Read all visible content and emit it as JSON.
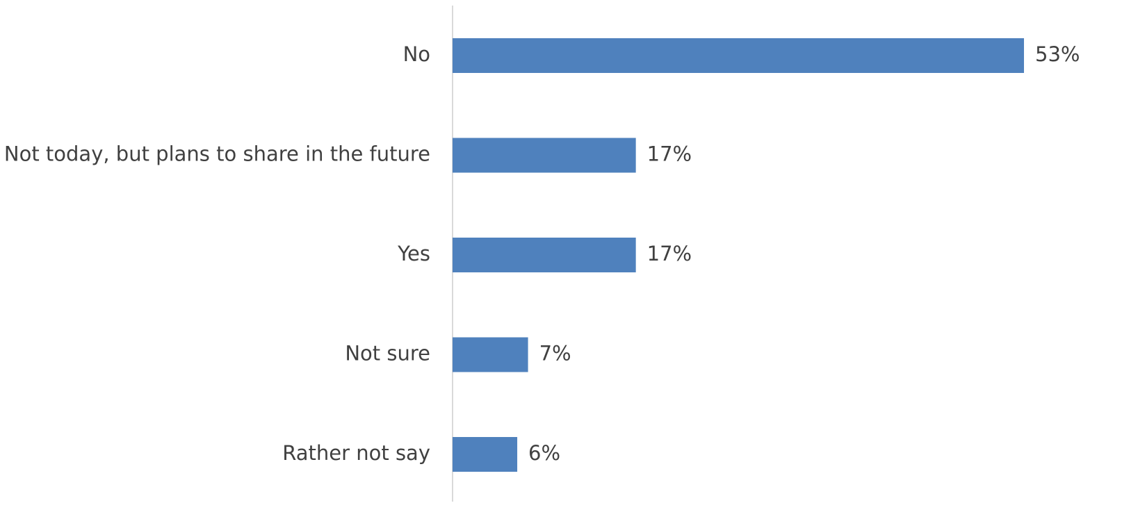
{
  "chart_data": {
    "type": "bar",
    "orientation": "horizontal",
    "title": "",
    "xlabel": "",
    "ylabel": "",
    "categories": [
      "No",
      "Not today, but plans to share in the future",
      "Yes",
      "Not sure",
      "Rather not say"
    ],
    "values": [
      53,
      17,
      17,
      7,
      6
    ],
    "data_labels": [
      "53%",
      "17%",
      "17%",
      "7%",
      "6%"
    ],
    "unit": "%",
    "xlim": [
      0,
      53
    ],
    "grid": false,
    "legend": "none",
    "colors": {
      "bar": "#4F81BD",
      "axis": "#D9D9D9",
      "text": "#404040"
    }
  }
}
